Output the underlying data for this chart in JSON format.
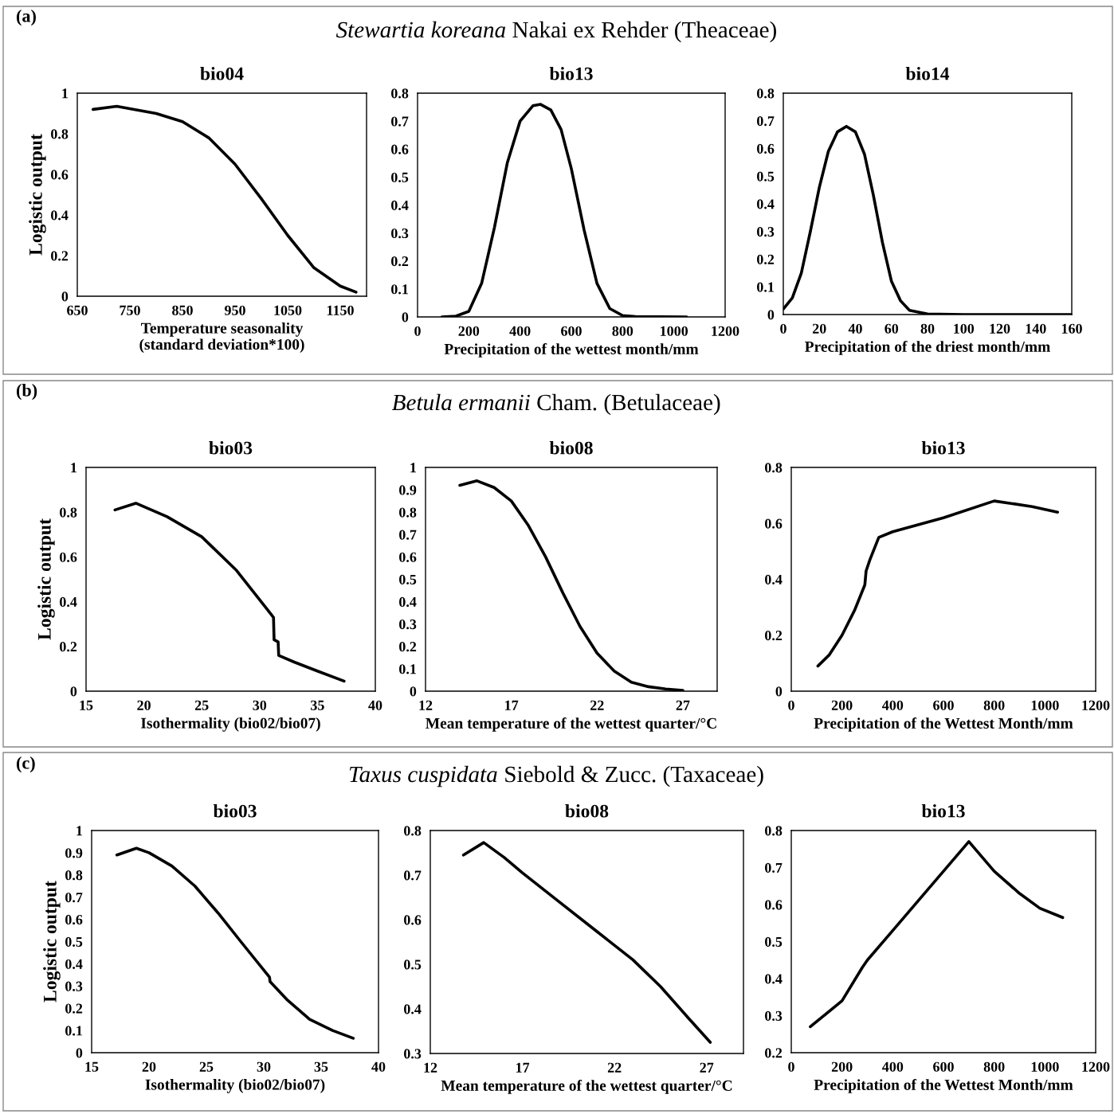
{
  "chart_data": [
    {
      "type": "line",
      "title": "bio04",
      "xlabel": "Temperature seasonality\n(standard deviation*100)",
      "ylabel": "Logistic output",
      "annotations": [
        "(a)",
        "Stewartia koreana",
        "Nakai ex Rehder (Theaceae)"
      ],
      "xlim": [
        650,
        1200
      ],
      "xticks": [
        650,
        750,
        850,
        950,
        1050,
        1150
      ],
      "ylim": [
        0,
        1
      ],
      "yticks": [
        0,
        0.2,
        0.4,
        0.6,
        0.8,
        1
      ],
      "grid": false,
      "series": [
        {
          "color": "#000000",
          "x": [
            680,
            725,
            800,
            850,
            900,
            950,
            1000,
            1050,
            1100,
            1150,
            1180
          ],
          "values": [
            0.92,
            0.935,
            0.9,
            0.86,
            0.78,
            0.65,
            0.48,
            0.3,
            0.14,
            0.05,
            0.02
          ]
        }
      ]
    },
    {
      "type": "line",
      "title": "bio13",
      "xlabel": "Precipitation of the wettest month/mm",
      "xlim": [
        0,
        1200
      ],
      "xticks": [
        0,
        200,
        400,
        600,
        800,
        1000,
        1200
      ],
      "ylim": [
        0,
        0.8
      ],
      "yticks": [
        0,
        0.1,
        0.2,
        0.3,
        0.4,
        0.5,
        0.6,
        0.7,
        0.8
      ],
      "grid": false,
      "series": [
        {
          "color": "#000000",
          "x": [
            95,
            150,
            200,
            250,
            300,
            350,
            400,
            450,
            480,
            520,
            560,
            600,
            650,
            700,
            750,
            800,
            850,
            1050
          ],
          "values": [
            0,
            0.003,
            0.02,
            0.12,
            0.32,
            0.55,
            0.7,
            0.755,
            0.76,
            0.74,
            0.67,
            0.53,
            0.31,
            0.12,
            0.03,
            0.005,
            0.001,
            0
          ]
        }
      ]
    },
    {
      "type": "line",
      "title": "bio14",
      "xlabel": "Precipitation of the driest month/mm",
      "xlim": [
        0,
        160
      ],
      "xticks": [
        0,
        20,
        40,
        60,
        80,
        100,
        120,
        140,
        160
      ],
      "ylim": [
        0,
        0.8
      ],
      "yticks": [
        0,
        0.1,
        0.2,
        0.3,
        0.4,
        0.5,
        0.6,
        0.7,
        0.8
      ],
      "grid": false,
      "series": [
        {
          "color": "#000000",
          "x": [
            0,
            5,
            10,
            15,
            20,
            25,
            30,
            35,
            40,
            45,
            50,
            55,
            60,
            65,
            70,
            80,
            100,
            160
          ],
          "values": [
            0.02,
            0.06,
            0.15,
            0.3,
            0.46,
            0.59,
            0.66,
            0.68,
            0.66,
            0.58,
            0.43,
            0.26,
            0.12,
            0.05,
            0.015,
            0.002,
            0,
            0
          ]
        }
      ]
    },
    {
      "type": "line",
      "title": "bio03",
      "xlabel": "Isothermality (bio02/bio07)",
      "ylabel": "Logistic output",
      "annotations": [
        "(b)",
        "Betula ermanii",
        "Cham. (Betulaceae)"
      ],
      "xlim": [
        15,
        40
      ],
      "xticks": [
        15,
        20,
        25,
        30,
        35,
        40
      ],
      "ylim": [
        0,
        1
      ],
      "yticks": [
        0,
        0.2,
        0.4,
        0.6,
        0.8,
        1
      ],
      "grid": false,
      "series": [
        {
          "color": "#000000",
          "x": [
            17.5,
            19.3,
            22,
            25,
            28,
            31.2,
            31.25,
            31.6,
            31.65,
            33,
            35,
            37.3
          ],
          "values": [
            0.81,
            0.84,
            0.78,
            0.69,
            0.54,
            0.33,
            0.23,
            0.22,
            0.16,
            0.13,
            0.09,
            0.045
          ]
        }
      ]
    },
    {
      "type": "line",
      "title": "bio08",
      "xlabel": "Mean temperature of the wettest quarter/°C",
      "xlim": [
        12,
        29
      ],
      "xticks": [
        12,
        17,
        22,
        27
      ],
      "ylim": [
        0,
        1
      ],
      "yticks": [
        0,
        0.1,
        0.2,
        0.3,
        0.4,
        0.5,
        0.6,
        0.7,
        0.8,
        0.9,
        1
      ],
      "grid": false,
      "series": [
        {
          "color": "#000000",
          "x": [
            14,
            15,
            16,
            17,
            18,
            19,
            20,
            21,
            22,
            23,
            24,
            25,
            26,
            27
          ],
          "values": [
            0.92,
            0.94,
            0.91,
            0.85,
            0.74,
            0.6,
            0.44,
            0.29,
            0.17,
            0.09,
            0.04,
            0.02,
            0.01,
            0.003
          ]
        }
      ]
    },
    {
      "type": "line",
      "title": "bio13",
      "xlabel": "Precipitation of the Wettest Month/mm",
      "xlim": [
        0,
        1200
      ],
      "xticks": [
        0,
        200,
        400,
        600,
        800,
        1000,
        1200
      ],
      "ylim": [
        0,
        0.8
      ],
      "yticks": [
        0,
        0.2,
        0.4,
        0.6,
        0.8
      ],
      "grid": false,
      "series": [
        {
          "color": "#000000",
          "x": [
            105,
            150,
            200,
            250,
            290,
            295,
            310,
            345,
            400,
            600,
            800,
            950,
            1050
          ],
          "values": [
            0.09,
            0.13,
            0.2,
            0.29,
            0.38,
            0.43,
            0.47,
            0.55,
            0.57,
            0.62,
            0.68,
            0.66,
            0.64
          ]
        }
      ]
    },
    {
      "type": "line",
      "title": "bio03",
      "xlabel": "Isothermality (bio02/bio07)",
      "ylabel": "Logistic output",
      "annotations": [
        "(c)",
        "Taxus cuspidata",
        "Siebold & Zucc. (Taxaceae)"
      ],
      "xlim": [
        15,
        40
      ],
      "xticks": [
        15,
        20,
        25,
        30,
        35,
        40
      ],
      "ylim": [
        0,
        1
      ],
      "yticks": [
        0,
        0.1,
        0.2,
        0.3,
        0.4,
        0.5,
        0.6,
        0.7,
        0.8,
        0.9,
        1
      ],
      "grid": false,
      "series": [
        {
          "color": "#000000",
          "x": [
            17.2,
            18.9,
            20,
            22,
            24,
            26,
            28,
            30.5,
            30.55,
            32,
            34,
            36,
            37.8
          ],
          "values": [
            0.89,
            0.92,
            0.9,
            0.84,
            0.75,
            0.63,
            0.5,
            0.34,
            0.32,
            0.24,
            0.15,
            0.1,
            0.065
          ]
        }
      ]
    },
    {
      "type": "line",
      "title": "bio08",
      "xlabel": "Mean temperature of the wettest quarter/°C",
      "xlim": [
        12,
        29
      ],
      "xticks": [
        12,
        17,
        22,
        27
      ],
      "ylim": [
        0.3,
        0.8
      ],
      "yticks": [
        0.3,
        0.4,
        0.5,
        0.6,
        0.7,
        0.8
      ],
      "grid": false,
      "series": [
        {
          "color": "#000000",
          "x": [
            13.8,
            14.9,
            16,
            17,
            19,
            21,
            23,
            24.5,
            26,
            27.2
          ],
          "values": [
            0.745,
            0.773,
            0.74,
            0.705,
            0.64,
            0.575,
            0.51,
            0.45,
            0.38,
            0.325
          ]
        }
      ]
    },
    {
      "type": "line",
      "title": "bio13",
      "xlabel": "Precipitation of the Wettest Month/mm",
      "xlim": [
        0,
        1200
      ],
      "xticks": [
        0,
        200,
        400,
        600,
        800,
        1000,
        1200
      ],
      "ylim": [
        0.2,
        0.8
      ],
      "yticks": [
        0.2,
        0.3,
        0.4,
        0.5,
        0.6,
        0.7,
        0.8
      ],
      "grid": false,
      "series": [
        {
          "color": "#000000",
          "x": [
            75,
            200,
            280,
            300,
            400,
            500,
            600,
            700,
            800,
            900,
            980,
            1070
          ],
          "values": [
            0.27,
            0.34,
            0.43,
            0.45,
            0.53,
            0.61,
            0.69,
            0.77,
            0.69,
            0.63,
            0.59,
            0.565
          ]
        }
      ]
    }
  ]
}
